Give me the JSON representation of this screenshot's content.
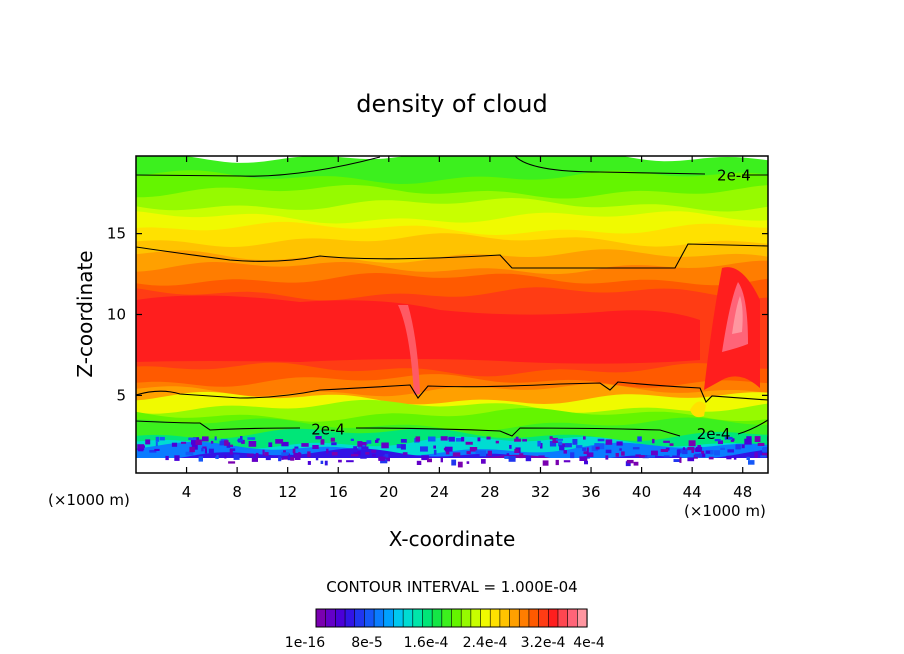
{
  "chart_data": {
    "type": "heatmap",
    "title": "density of cloud",
    "xlabel": "X-coordinate",
    "ylabel": "Z-coordinate",
    "x_unit_left": "(×1000 m)",
    "x_unit_right": "(×1000 m)",
    "xlim": [
      0,
      50
    ],
    "ylim": [
      0.2,
      19.8
    ],
    "x_ticks": [
      4,
      8,
      12,
      16,
      20,
      24,
      28,
      32,
      36,
      40,
      44,
      48
    ],
    "y_ticks": [
      5,
      10,
      15
    ],
    "contour_interval_text": "CONTOUR INTERVAL = 1.000E-04",
    "contour_labels": [
      {
        "text": "2e-4",
        "x": 47.3,
        "z": 18.6
      },
      {
        "text": "2e-4",
        "x": 15.2,
        "z": 2.9
      },
      {
        "text": "2e-4",
        "x": 45.7,
        "z": 2.6
      }
    ],
    "color_levels": [
      "#7a00b0",
      "#6400c8",
      "#4b00d8",
      "#3214e6",
      "#2036f0",
      "#1458f8",
      "#0a7cff",
      "#00a0ff",
      "#00c8f0",
      "#00dcd2",
      "#00e6aa",
      "#00e678",
      "#14e646",
      "#3cf01e",
      "#64f500",
      "#96fa00",
      "#c8ff00",
      "#f0fa00",
      "#ffe100",
      "#ffc300",
      "#ffa000",
      "#ff7d00",
      "#ff5a00",
      "#ff3c14",
      "#ff1e1e",
      "#ff4650",
      "#ff6478",
      "#ff96a0"
    ],
    "colorbar_labels": [
      "1e-16",
      "8e-5",
      "1.6e-4",
      "2.4e-4",
      "3.2e-4",
      "4e-4"
    ],
    "profile_bands_z": [
      {
        "z": 0.9,
        "level": 0
      },
      {
        "z": 1.3,
        "level": 3
      },
      {
        "z": 1.7,
        "level": 6
      },
      {
        "z": 2.1,
        "level": 9
      },
      {
        "z": 2.6,
        "level": 11
      },
      {
        "z": 3.2,
        "level": 13
      },
      {
        "z": 3.8,
        "level": 14
      },
      {
        "z": 4.3,
        "level": 15
      },
      {
        "z": 4.8,
        "level": 17
      },
      {
        "z": 5.3,
        "level": 20
      },
      {
        "z": 5.9,
        "level": 21
      },
      {
        "z": 6.6,
        "level": 22
      },
      {
        "z": 11.3,
        "level": 23
      },
      {
        "z": 12.2,
        "level": 22
      },
      {
        "z": 12.9,
        "level": 21
      },
      {
        "z": 13.6,
        "level": 20
      },
      {
        "z": 14.6,
        "level": 19
      },
      {
        "z": 15.3,
        "level": 18
      },
      {
        "z": 16.0,
        "level": 17
      },
      {
        "z": 16.8,
        "level": 16
      },
      {
        "z": 17.6,
        "level": 15
      },
      {
        "z": 18.5,
        "level": 14
      },
      {
        "z": 19.8,
        "level": 13
      }
    ]
  }
}
